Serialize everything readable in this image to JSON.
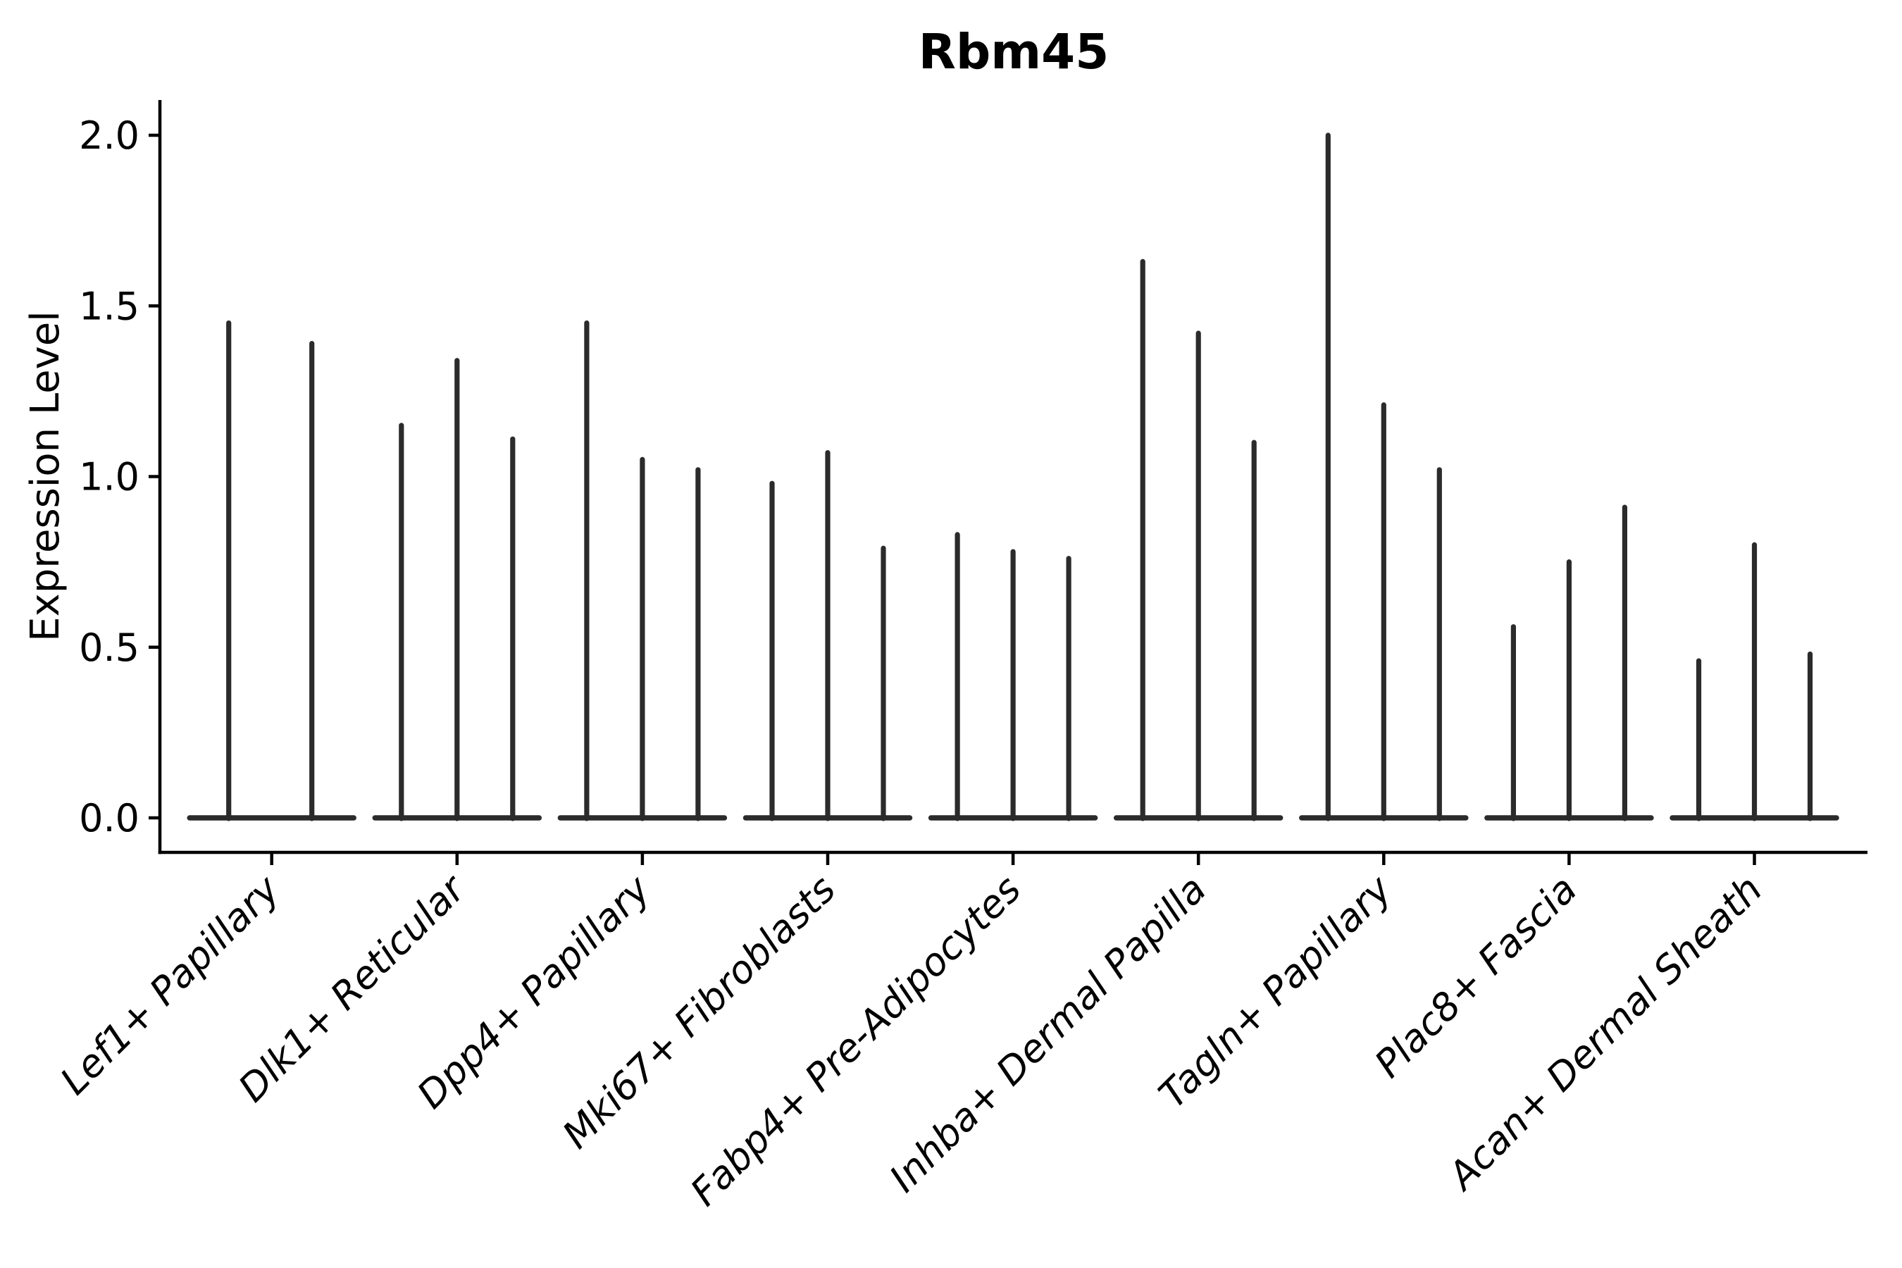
{
  "title": "Rbm45",
  "chart_data": {
    "type": "violin",
    "title": "Rbm45",
    "title_weight": "bold",
    "xlabel": "",
    "ylabel": "Expression Level",
    "ylim": [
      0,
      2.11
    ],
    "yticks": [
      0.0,
      0.5,
      1.0,
      1.5,
      2.0
    ],
    "ytick_labels": [
      "0.0",
      "0.5",
      "1.0",
      "1.5",
      "2.0"
    ],
    "grid": false,
    "legend": "none",
    "x_tick_label_style": "italic, rotated 45deg, right-anchored",
    "violin_style": "collapsed violins: wide flat base at y=0 with thin vertical spike up to max value",
    "violin_color": "#2b2b2b",
    "axis_color": "#000000",
    "categories": [
      "Lef1+ Papillary",
      "Dlk1+ Reticular",
      "Dpp4+ Papillary",
      "Mki67+ Fibroblasts",
      "Fabp4+ Pre-Adipocytes",
      "Inhba+ Dermal Papilla",
      "Tagln+ Papillary",
      "Plac8+ Fascia",
      "Acan+ Dermal Sheath"
    ],
    "series": [
      {
        "category": "Lef1+ Papillary",
        "violin_maxima": [
          1.45,
          1.39
        ]
      },
      {
        "category": "Dlk1+ Reticular",
        "violin_maxima": [
          1.15,
          1.34,
          1.11
        ]
      },
      {
        "category": "Dpp4+ Papillary",
        "violin_maxima": [
          1.45,
          1.05,
          1.02
        ]
      },
      {
        "category": "Mki67+ Fibroblasts",
        "violin_maxima": [
          0.98,
          1.07,
          0.79
        ]
      },
      {
        "category": "Fabp4+ Pre-Adipocytes",
        "violin_maxima": [
          0.83,
          0.78,
          0.76
        ]
      },
      {
        "category": "Inhba+ Dermal Papilla",
        "violin_maxima": [
          1.63,
          1.42,
          1.1
        ]
      },
      {
        "category": "Tagln+ Papillary",
        "violin_maxima": [
          2.0,
          1.21,
          1.02
        ]
      },
      {
        "category": "Plac8+ Fascia",
        "violin_maxima": [
          0.56,
          0.75,
          0.91
        ]
      },
      {
        "category": "Acan+ Dermal Sheath",
        "violin_maxima": [
          0.46,
          0.8,
          0.48
        ]
      }
    ]
  }
}
